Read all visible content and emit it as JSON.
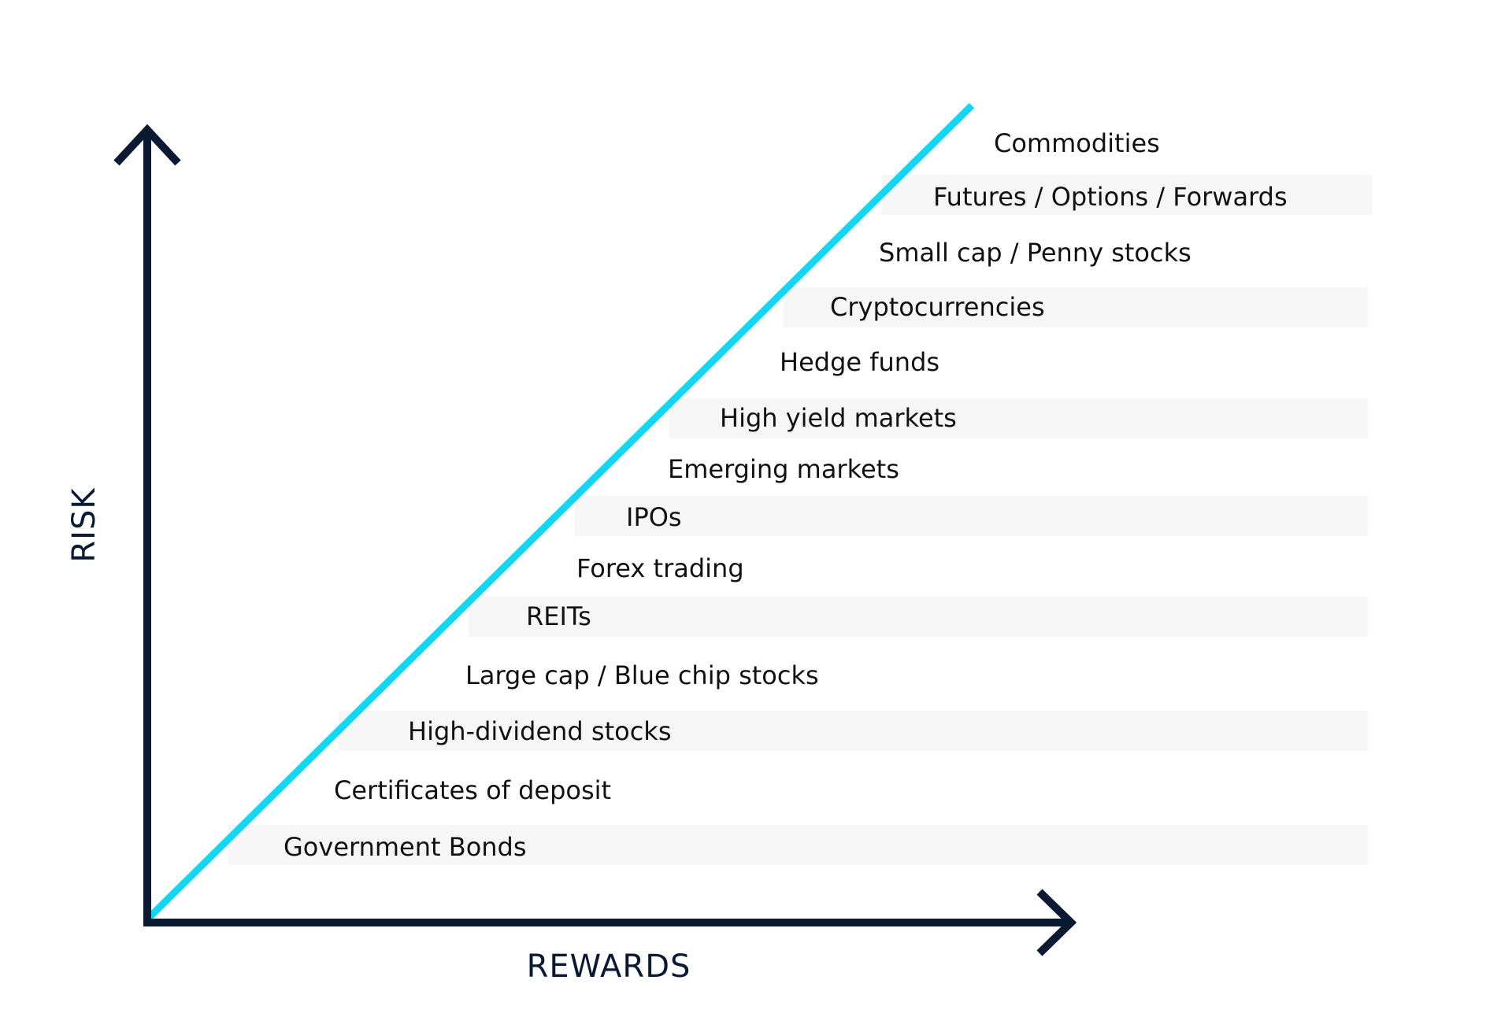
{
  "axes": {
    "y_label": "RISK",
    "x_label": "REWARDS"
  },
  "colors": {
    "axis": "#0b1a33",
    "trend_line": "#12d6f2",
    "band": "#f6f6f6",
    "text": "#111111"
  },
  "items": [
    {
      "label": "Commodities"
    },
    {
      "label": "Futures / Options / Forwards"
    },
    {
      "label": "Small cap / Penny stocks"
    },
    {
      "label": "Cryptocurrencies"
    },
    {
      "label": "Hedge funds"
    },
    {
      "label": "High yield markets"
    },
    {
      "label": "Emerging markets"
    },
    {
      "label": "IPOs"
    },
    {
      "label": "Forex trading"
    },
    {
      "label": "REITs"
    },
    {
      "label": "Large cap / Blue chip stocks"
    },
    {
      "label": "High-dividend stocks"
    },
    {
      "label": "Certificates of deposit"
    },
    {
      "label": "Government Bonds"
    }
  ]
}
